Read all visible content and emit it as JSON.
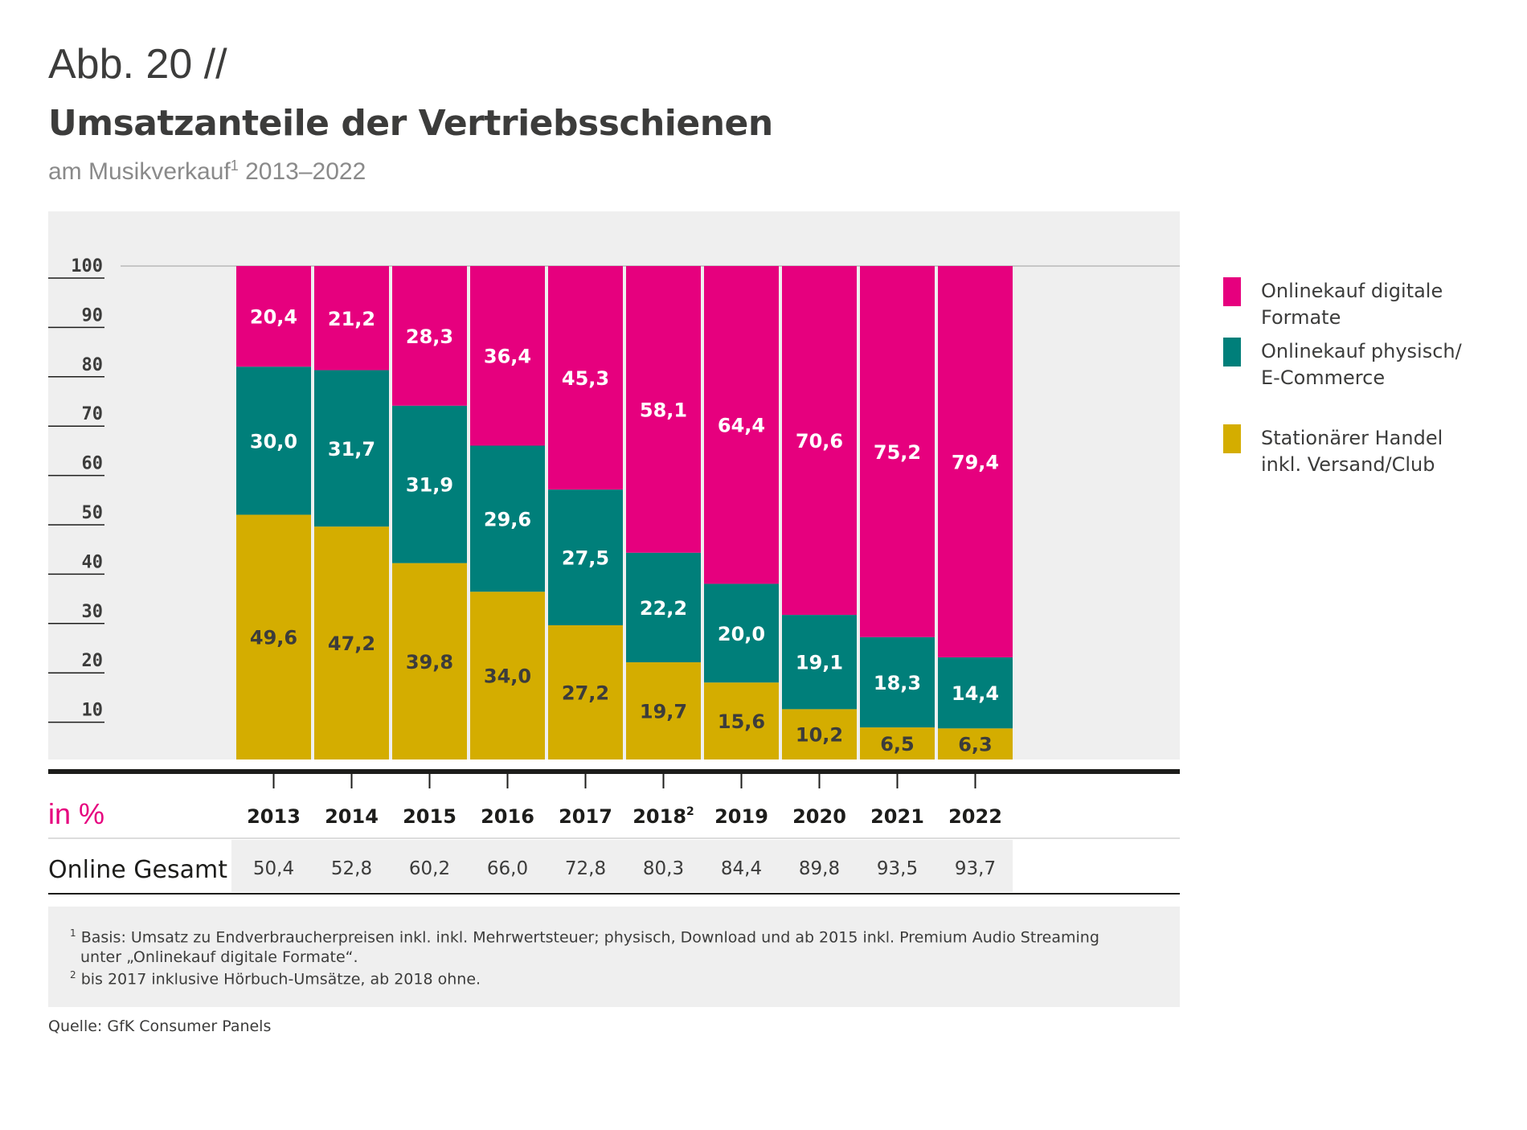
{
  "header": {
    "pretitle": "Abb. 20 //",
    "title": "Umsatzanteile der Vertriebsschienen",
    "subtitle": "am Musikverkauf",
    "subtitle_sup": "1",
    "subtitle_years": "2013–2022"
  },
  "chart_data": {
    "type": "bar",
    "stacked": true,
    "categories": [
      "2013",
      "2014",
      "2015",
      "2016",
      "2017",
      "2018",
      "2019",
      "2020",
      "2021",
      "2022"
    ],
    "category_sup": [
      "",
      "",
      "",
      "",
      "",
      "2",
      "",
      "",
      "",
      ""
    ],
    "series": [
      {
        "name": "Stationärer Handel inkl. Versand/Club",
        "color": "#d4ad00",
        "label_color": "#3c3c3b",
        "values": [
          49.6,
          47.2,
          39.8,
          34.0,
          27.2,
          19.7,
          15.6,
          10.2,
          6.5,
          6.3
        ]
      },
      {
        "name": "Onlinekauf physisch/ E-Commerce",
        "color": "#007f7a",
        "label_color": "#ffffff",
        "values": [
          30.0,
          31.7,
          31.9,
          29.6,
          27.5,
          22.2,
          20.0,
          19.1,
          18.3,
          14.4
        ]
      },
      {
        "name": "Onlinekauf digitale Formate",
        "color": "#e6007e",
        "label_color": "#ffffff",
        "values": [
          20.4,
          21.2,
          28.3,
          36.4,
          45.3,
          58.1,
          64.4,
          70.6,
          75.2,
          79.4
        ]
      }
    ],
    "value_labels": [
      [
        "49,6",
        "47,2",
        "39,8",
        "34,0",
        "27,2",
        "19,7",
        "15,6",
        "10,2",
        "6,5",
        "6,3"
      ],
      [
        "30,0",
        "31,7",
        "31,9",
        "29,6",
        "27,5",
        "22,2",
        "20,0",
        "19,1",
        "18,3",
        "14,4"
      ],
      [
        "20,4",
        "21,2",
        "28,3",
        "36,4",
        "45,3",
        "58,1",
        "64,4",
        "70,6",
        "75,2",
        "79,4"
      ]
    ],
    "y_ticks": [
      "10",
      "20",
      "30",
      "40",
      "50",
      "60",
      "70",
      "80",
      "90",
      "100"
    ],
    "ylim": [
      0,
      100
    ],
    "unit_label": "in %",
    "summary_row": {
      "label": "Online Gesamt",
      "values": [
        "50,4",
        "52,8",
        "60,2",
        "66,0",
        "72,8",
        "80,3",
        "84,4",
        "89,8",
        "93,5",
        "93,7"
      ]
    },
    "legend_position": "right"
  },
  "legend": [
    {
      "lines": [
        "Onlinekauf digitale Formate"
      ],
      "color": "#e6007e"
    },
    {
      "lines": [
        "Onlinekauf physisch/",
        "E-Commerce"
      ],
      "color": "#007f7a"
    },
    {
      "lines": [
        "Stationärer Handel",
        "inkl. Versand/Club"
      ],
      "color": "#d4ad00"
    }
  ],
  "footnotes": {
    "fn1_sup": "1",
    "fn1_line1": "Basis: Umsatz zu Endverbraucherpreisen inkl. inkl. Mehrwertsteuer; physisch, Download und ab 2015 inkl. Premium Audio Streaming",
    "fn1_line2": "unter „Onlinekauf digitale Formate“.",
    "fn2_sup": "2",
    "fn2_line1": "bis 2017 inklusive Hörbuch-Umsätze, ab 2018 ohne."
  },
  "source": "Quelle: GfK Consumer Panels"
}
